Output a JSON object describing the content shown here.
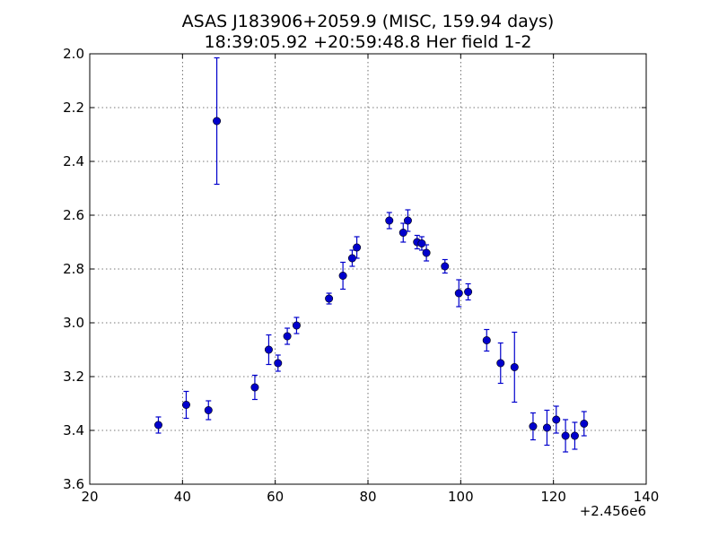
{
  "chart_data": {
    "type": "scatter",
    "title": "ASAS J183906+2059.9 (MISC, 159.94 days)",
    "subtitle": "18:39:05.92 +20:59:48.8 Her field 1-2",
    "xlabel": "",
    "ylabel": "",
    "x_offset_label": "+2.456e6",
    "xlim": [
      20,
      140
    ],
    "ylim": [
      3.6,
      2.0
    ],
    "y_inverted": true,
    "x_ticks": [
      20,
      40,
      60,
      80,
      100,
      120,
      140
    ],
    "x_tick_labels": [
      "20",
      "40",
      "60",
      "80",
      "100",
      "120",
      "140"
    ],
    "y_ticks": [
      2.0,
      2.2,
      2.4,
      2.6,
      2.8,
      3.0,
      3.2,
      3.4,
      3.6
    ],
    "y_tick_labels": [
      "2.0",
      "2.2",
      "2.4",
      "2.6",
      "2.8",
      "3.0",
      "3.2",
      "3.4",
      "3.6"
    ],
    "grid": true,
    "color": "#0000cc",
    "series": [
      {
        "points": [
          {
            "x": 34.8,
            "y": 3.38,
            "err": 0.03
          },
          {
            "x": 40.8,
            "y": 3.305,
            "err": 0.05
          },
          {
            "x": 45.6,
            "y": 3.325,
            "err": 0.035
          },
          {
            "x": 47.4,
            "y": 2.25,
            "err": 0.235
          },
          {
            "x": 55.6,
            "y": 3.24,
            "err": 0.045
          },
          {
            "x": 58.6,
            "y": 3.1,
            "err": 0.055
          },
          {
            "x": 60.6,
            "y": 3.15,
            "err": 0.03
          },
          {
            "x": 62.6,
            "y": 3.05,
            "err": 0.03
          },
          {
            "x": 64.6,
            "y": 3.01,
            "err": 0.03
          },
          {
            "x": 71.6,
            "y": 2.91,
            "err": 0.02
          },
          {
            "x": 74.6,
            "y": 2.825,
            "err": 0.05
          },
          {
            "x": 76.6,
            "y": 2.76,
            "err": 0.03
          },
          {
            "x": 77.6,
            "y": 2.72,
            "err": 0.04
          },
          {
            "x": 84.6,
            "y": 2.62,
            "err": 0.03
          },
          {
            "x": 87.6,
            "y": 2.665,
            "err": 0.035
          },
          {
            "x": 88.6,
            "y": 2.62,
            "err": 0.04
          },
          {
            "x": 90.6,
            "y": 2.7,
            "err": 0.025
          },
          {
            "x": 91.6,
            "y": 2.705,
            "err": 0.025
          },
          {
            "x": 92.6,
            "y": 2.74,
            "err": 0.03
          },
          {
            "x": 96.6,
            "y": 2.79,
            "err": 0.025
          },
          {
            "x": 99.6,
            "y": 2.89,
            "err": 0.05
          },
          {
            "x": 101.6,
            "y": 2.885,
            "err": 0.03
          },
          {
            "x": 105.6,
            "y": 3.065,
            "err": 0.04
          },
          {
            "x": 108.6,
            "y": 3.15,
            "err": 0.075
          },
          {
            "x": 111.6,
            "y": 3.165,
            "err": 0.13
          },
          {
            "x": 115.6,
            "y": 3.385,
            "err": 0.05
          },
          {
            "x": 118.6,
            "y": 3.39,
            "err": 0.065
          },
          {
            "x": 120.6,
            "y": 3.36,
            "err": 0.05
          },
          {
            "x": 122.6,
            "y": 3.42,
            "err": 0.06
          },
          {
            "x": 124.6,
            "y": 3.42,
            "err": 0.05
          },
          {
            "x": 126.6,
            "y": 3.375,
            "err": 0.045
          }
        ]
      }
    ]
  }
}
